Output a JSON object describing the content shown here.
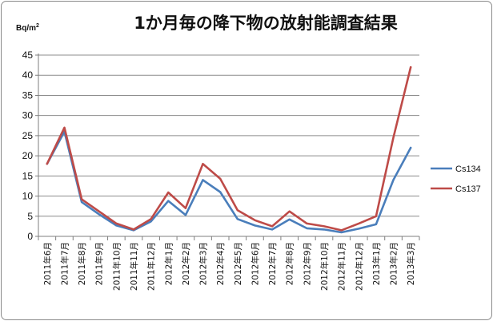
{
  "chart_data": {
    "type": "line",
    "title": "1か月毎の降下物の放射能調査結果",
    "ylabel": "Bq/m",
    "ylabel_sup": "2",
    "xlabel": "",
    "ylim": [
      0,
      45
    ],
    "yticks": [
      "0",
      "5",
      "10",
      "15",
      "20",
      "25",
      "30",
      "35",
      "40",
      "45"
    ],
    "grid": true,
    "legend_position": "right",
    "categories": [
      "2011年6月",
      "2011年7月",
      "2011年8月",
      "2011年9月",
      "2011年10月",
      "2011年11月",
      "2011年12月",
      "2012年1月",
      "2012年2月",
      "2012年3月",
      "2012年4月",
      "2012年5月",
      "2012年6月",
      "2012年7月",
      "2012年8月",
      "2012年9月",
      "2012年10月",
      "2012年11月",
      "2012年12月",
      "2013年1月",
      "2013年2月",
      "2013年3月"
    ],
    "series": [
      {
        "name": "Cs134",
        "color": "#4a7ebb",
        "values": [
          18,
          26,
          8.5,
          5.5,
          2.7,
          1.5,
          3.7,
          8.8,
          5.3,
          14,
          11,
          4.3,
          2.7,
          1.7,
          4.2,
          2,
          1.7,
          1,
          1.9,
          3,
          14,
          22
        ]
      },
      {
        "name": "Cs137",
        "color": "#be4b48",
        "values": [
          18,
          27,
          9.2,
          6.2,
          3.2,
          1.7,
          4.3,
          10.9,
          7,
          18,
          14.3,
          6.5,
          4,
          2.5,
          6.2,
          3.2,
          2.5,
          1.5,
          3.2,
          5,
          24.5,
          42
        ]
      }
    ]
  }
}
